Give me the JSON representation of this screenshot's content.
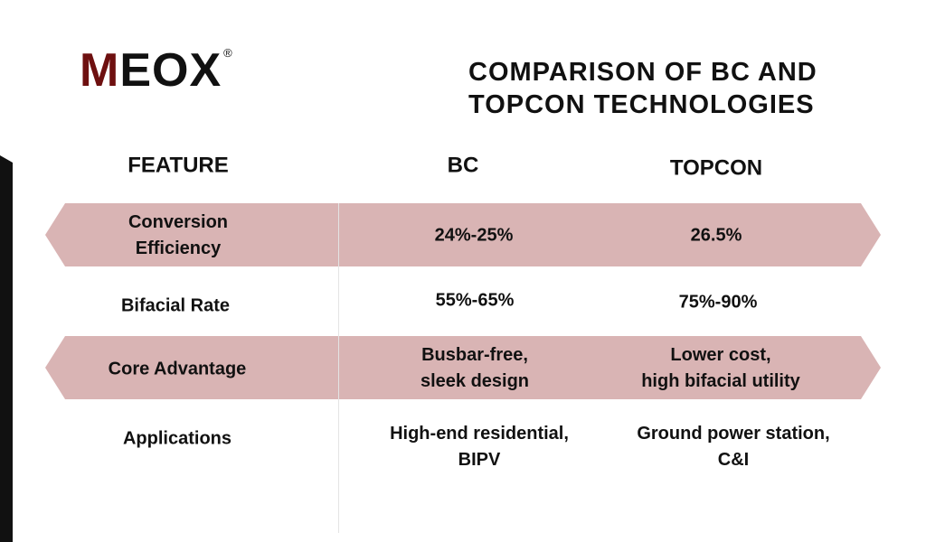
{
  "logo": {
    "first": "M",
    "rest": "EOX",
    "mark": "®"
  },
  "title": "COMPARISON OF BC AND\nTOPCON TECHNOLOGIES",
  "table": {
    "header": [
      "FEATURE",
      "BC",
      "TOPCON"
    ],
    "rows": [
      [
        "Conversion\nEfficiency",
        "24%-25%",
        "26.5%"
      ],
      [
        "Bifacial Rate",
        "55%-65%",
        "75%-90%"
      ],
      [
        "Core Advantage",
        "Busbar-free,\nsleek design",
        "Lower cost,\nhigh bifacial utility"
      ],
      [
        "Applications",
        "High-end residential,\nBIPV",
        "Ground power station,\nC&I"
      ]
    ]
  }
}
